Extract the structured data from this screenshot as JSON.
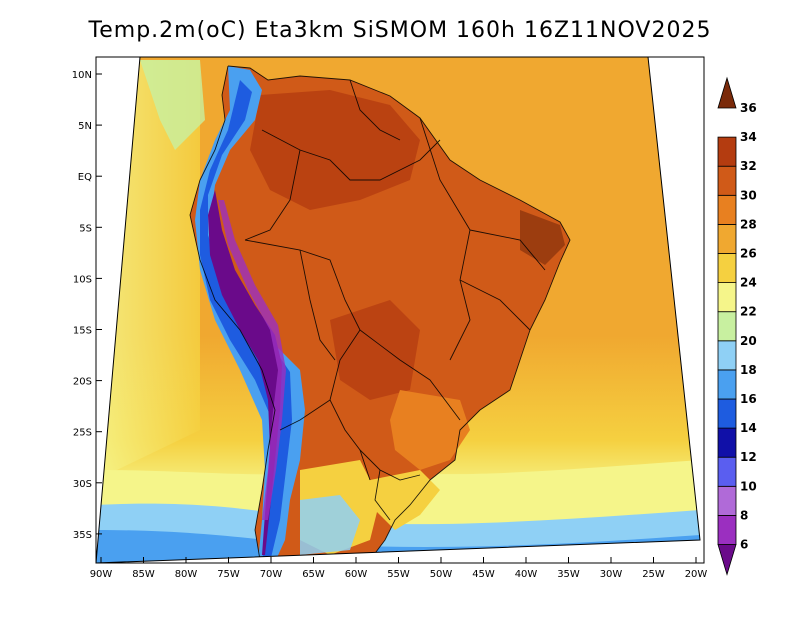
{
  "title": "Temp.2m(oC) Eta3km SiSMOM 160h 16Z11NOV2025",
  "lat_labels": [
    "10N",
    "5N",
    "EQ",
    "5S",
    "10S",
    "15S",
    "20S",
    "25S",
    "30S",
    "35S"
  ],
  "lon_labels": [
    "90W",
    "85W",
    "80W",
    "75W",
    "70W",
    "65W",
    "60W",
    "55W",
    "50W",
    "45W",
    "40W",
    "35W",
    "30W",
    "25W",
    "20W"
  ],
  "colorbar": {
    "labels": [
      "6",
      "8",
      "10",
      "12",
      "14",
      "16",
      "18",
      "20",
      "22",
      "24",
      "26",
      "28",
      "30",
      "32",
      "34",
      "36"
    ],
    "colors": [
      "#6a0a8a",
      "#9b2fc0",
      "#b06ad8",
      "#5a5ef0",
      "#1010a8",
      "#1e5ce0",
      "#4aa0f0",
      "#8fd0f5",
      "#c8f0a0",
      "#f5f58a",
      "#f5d040",
      "#f0a830",
      "#e88020",
      "#d05a18",
      "#b43c10",
      "#7a2a0a"
    ]
  },
  "colors": {
    "ocean_warm": "#f0a830",
    "ocean_mid": "#f5d040",
    "ocean_cool": "#f5f58a",
    "land_hot": "#d05a18",
    "land_hotter": "#b43c10",
    "andes_cold": "#4aa0f0",
    "andes_coldest": "#6a0a8a"
  }
}
